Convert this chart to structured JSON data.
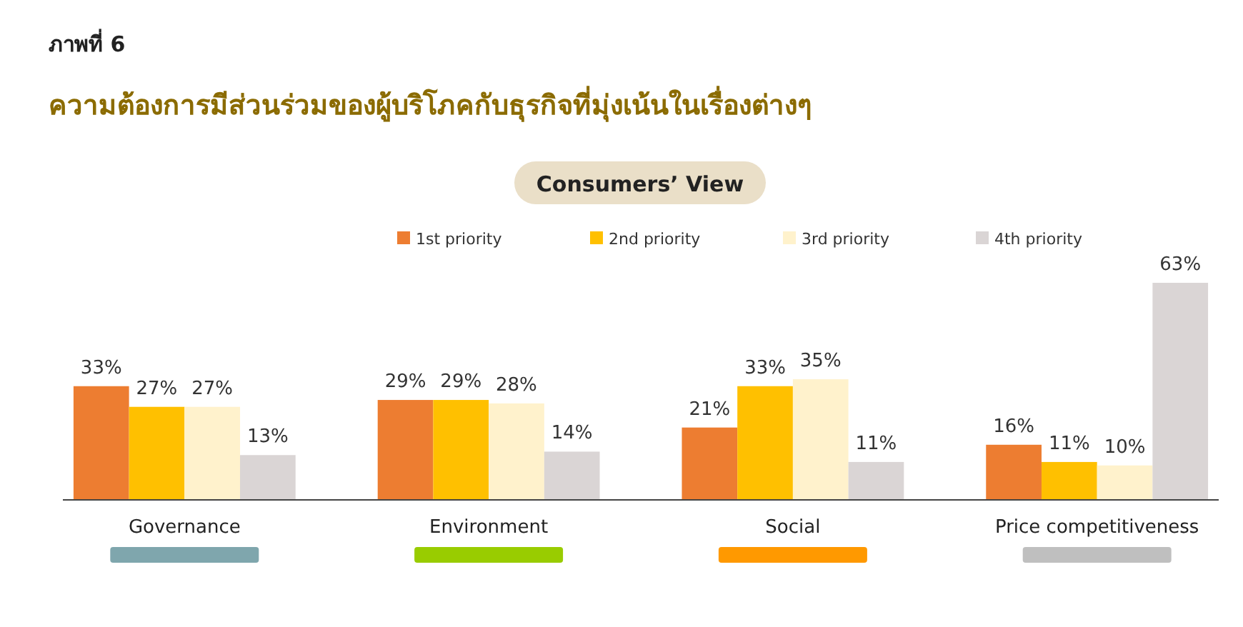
{
  "chart_data": {
    "type": "bar",
    "title": "ความต้องการมีส่วนร่วมของผู้บริโภคกับธุรกิจที่มุ่งเน้นในเรื่องต่างๆ",
    "subtitle": "Consumers’ View",
    "annotations": [
      "ภาพที่ 6"
    ],
    "categories": [
      "Governance",
      "Environment",
      "Social",
      "Price competitiveness"
    ],
    "series": [
      {
        "name": "1st priority",
        "color": "#ed7d31",
        "values": [
          33,
          29,
          21,
          16
        ],
        "value_labels": [
          "33%",
          "29%",
          "21%",
          "16%"
        ]
      },
      {
        "name": "2nd priority",
        "color": "#ffc000",
        "values": [
          27,
          29,
          33,
          11
        ],
        "value_labels": [
          "27%",
          "29%",
          "33%",
          "11%"
        ]
      },
      {
        "name": "3rd priority",
        "color": "#fff2cc",
        "values": [
          27,
          28,
          35,
          10
        ],
        "value_labels": [
          "27%",
          "28%",
          "35%",
          "10%"
        ]
      },
      {
        "name": "4th priority",
        "color": "#dad5d5",
        "values": [
          13,
          14,
          11,
          63
        ],
        "value_labels": [
          "13%",
          "14%",
          "11%",
          "63%"
        ]
      }
    ],
    "legend": "top",
    "grid": false
  }
}
